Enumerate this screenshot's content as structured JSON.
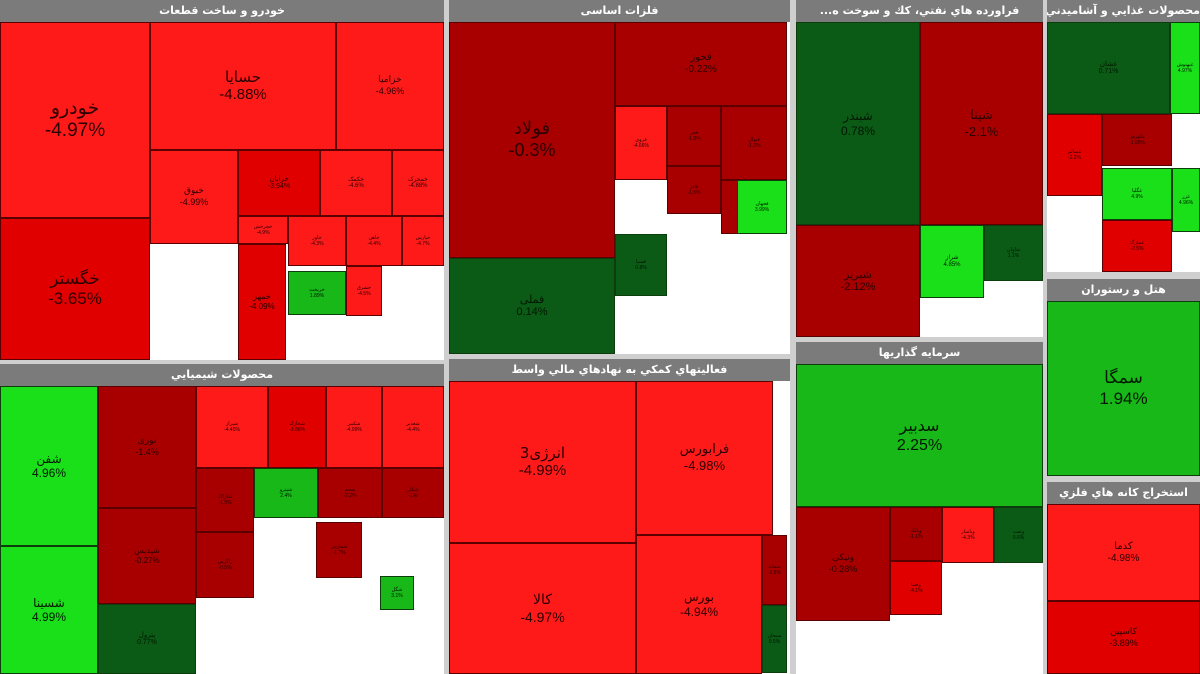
{
  "colors": {
    "neg_strong": "#ff1a1a",
    "neg_mid": "#e00000",
    "neg_dark": "#a80000",
    "pos_bright": "#19e019",
    "pos_mid": "#17b817",
    "pos_dark": "#0b5a16",
    "header": "#7b7b7b"
  },
  "chart_data": {
    "type": "heatmap",
    "subtype": "treemap",
    "sectors": [
      {
        "id": "auto",
        "title": "خودرو و ساخت قطعات",
        "tiles": [
          {
            "name": "خودرو",
            "change": -4.97,
            "text_size": 19
          },
          {
            "name": "حسایا",
            "change": -4.88,
            "text_size": 15
          },
          {
            "name": "خزامیا",
            "change": -4.96,
            "text_size": 9
          },
          {
            "name": "خگستر",
            "change": -3.65,
            "text_size": 17
          },
          {
            "name": "خبوق",
            "change": -4.99,
            "text_size": 9
          },
          {
            "name": "خمهر",
            "change": -4.09,
            "text_size": 8
          },
          {
            "name": "خرابان",
            "change": -3.94,
            "text_size": 7
          },
          {
            "name": "خکمک",
            "change": -4.6,
            "text_size": 6
          },
          {
            "name": "خمحرک",
            "change": -4.88,
            "text_size": 6
          },
          {
            "name": "خچرخش",
            "change": -4.9,
            "text_size": 5
          },
          {
            "name": "خاور",
            "change": -4.3,
            "text_size": 5
          },
          {
            "name": "خاهن",
            "change": -4.4,
            "text_size": 5
          },
          {
            "name": "خپارس",
            "change": -4.7,
            "text_size": 5
          },
          {
            "name": "خشرق",
            "change": -4.5,
            "text_size": 5
          },
          {
            "name": "خریخت",
            "change": 1.89,
            "text_size": 5
          }
        ]
      },
      {
        "id": "metals",
        "title": "فلزات اساسی",
        "tiles": [
          {
            "name": "فولاد",
            "change": -0.3,
            "text_size": 18
          },
          {
            "name": "فملی",
            "change": 0.14,
            "text_size": 11
          },
          {
            "name": "فخوز",
            "change": -0.22,
            "text_size": 10
          },
          {
            "name": "فروی",
            "change": -4.66,
            "text_size": 5
          },
          {
            "name": "فجر",
            "change": -1.8,
            "text_size": 5
          },
          {
            "name": "فنوال",
            "change": -1.2,
            "text_size": 5
          },
          {
            "name": "فاذر",
            "change": -1.5,
            "text_size": 5
          },
          {
            "name": "فسرب",
            "change": -0.9,
            "text_size": 5
          },
          {
            "name": "فسپا",
            "change": 0.8,
            "text_size": 5
          },
          {
            "name": "فجهان",
            "change": 3.99,
            "text_size": 5
          }
        ]
      },
      {
        "id": "oil",
        "title": "فراورده هاي نفتي، كك و سوخت ه...",
        "tiles": [
          {
            "name": "شبندر",
            "change": 0.78,
            "text_size": 12
          },
          {
            "name": "شپنا",
            "change": -2.1,
            "text_size": 13
          },
          {
            "name": "شبریز",
            "change": -2.12,
            "text_size": 11
          },
          {
            "name": "شراز",
            "change": 4.85,
            "text_size": 6
          },
          {
            "name": "شاوان",
            "change": 1.1,
            "text_size": 5
          }
        ]
      },
      {
        "id": "food",
        "title": "محصولات غذايي و آشاميدني به ج",
        "tiles": [
          {
            "name": "غشان",
            "change": 0.71,
            "text_size": 7
          },
          {
            "name": "غسالم",
            "change": -3.2,
            "text_size": 5
          },
          {
            "name": "غکورش",
            "change": -1.99,
            "text_size": 5
          },
          {
            "name": "غبهنوش",
            "change": 4.97,
            "text_size": 5
          },
          {
            "name": "غگلپا",
            "change": 4.9,
            "text_size": 5
          },
          {
            "name": "غمارگ",
            "change": -2.5,
            "text_size": 5
          },
          {
            "name": "غزر",
            "change": 4.96,
            "text_size": 5
          }
        ]
      },
      {
        "id": "hotel",
        "title": "هتل و رستوران",
        "tiles": [
          {
            "name": "سمگا",
            "change": 1.94,
            "text_size": 17
          }
        ]
      },
      {
        "id": "chem",
        "title": "محصولات شيميايي",
        "tiles": [
          {
            "name": "شفن",
            "change": 4.96,
            "text_size": 12
          },
          {
            "name": "شسینا",
            "change": 4.99,
            "text_size": 12
          },
          {
            "name": "پترول",
            "change": 0.77,
            "text_size": 7
          },
          {
            "name": "نوری",
            "change": -1.4,
            "text_size": 9
          },
          {
            "name": "شپدیس",
            "change": -0.27,
            "text_size": 8
          },
          {
            "name": "شیراز",
            "change": -4.45,
            "text_size": 5
          },
          {
            "name": "شخارک",
            "change": -3.86,
            "text_size": 5
          },
          {
            "name": "شکبیر",
            "change": -4.99,
            "text_size": 5
          },
          {
            "name": "شغدیر",
            "change": -4.4,
            "text_size": 5
          },
          {
            "name": "شاراک",
            "change": -1.9,
            "text_size": 5
          },
          {
            "name": "شپترو",
            "change": 2.4,
            "text_size": 5
          },
          {
            "name": "شجم",
            "change": -2.2,
            "text_size": 5
          },
          {
            "name": "شکلر",
            "change": -1.0,
            "text_size": 5
          },
          {
            "name": "زاگرس",
            "change": -0.5,
            "text_size": 5
          },
          {
            "name": "شفارس",
            "change": -1.7,
            "text_size": 5
          },
          {
            "name": "شگل",
            "change": 3.1,
            "text_size": 5
          }
        ]
      },
      {
        "id": "finance",
        "title": "فعاليتهاي كمكي به نهادهاي مالي واسط",
        "tiles": [
          {
            "name": "انرژی3",
            "change": -4.99,
            "text_size": 15
          },
          {
            "name": "فرابورس",
            "change": -4.98,
            "text_size": 13
          },
          {
            "name": "کالا",
            "change": -4.97,
            "text_size": 14
          },
          {
            "name": "بورس",
            "change": -4.94,
            "text_size": 12
          },
          {
            "name": "سماند",
            "change": -1.5,
            "text_size": 5
          },
          {
            "name": "سبحان",
            "change": 0.5,
            "text_size": 5
          }
        ]
      },
      {
        "id": "invest",
        "title": "سرمايه گذاريها",
        "tiles": [
          {
            "name": "سدبیر",
            "change": 2.25,
            "text_size": 16
          },
          {
            "name": "ونیکی",
            "change": -0.28,
            "text_size": 9
          },
          {
            "name": "وبانک",
            "change": -1.1,
            "text_size": 5
          },
          {
            "name": "وپاسار",
            "change": -4.3,
            "text_size": 5
          },
          {
            "name": "وصنا",
            "change": -4.1,
            "text_size": 5
          },
          {
            "name": "ونفت",
            "change": 0.6,
            "text_size": 5
          }
        ]
      },
      {
        "id": "mining",
        "title": "استخراج كانه هاي فلزي",
        "tiles": [
          {
            "name": "کدما",
            "change": -4.98,
            "text_size": 10
          },
          {
            "name": "کاسپین",
            "change": -3.89,
            "text_size": 9
          }
        ]
      }
    ]
  }
}
